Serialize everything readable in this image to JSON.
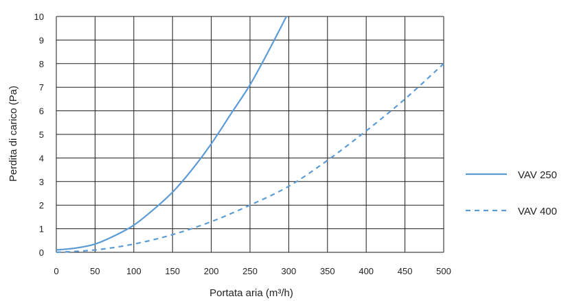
{
  "chart_data": {
    "type": "line",
    "xlabel": "Portata aria (m³/h)",
    "ylabel": "Perdita di carico (Pa)",
    "xlim": [
      0,
      500
    ],
    "ylim": [
      0,
      10
    ],
    "xticks": [
      "0",
      "50",
      "100",
      "150",
      "200",
      "250",
      "300",
      "350",
      "400",
      "450",
      "500"
    ],
    "yticks": [
      "0",
      "1",
      "2",
      "3",
      "4",
      "5",
      "6",
      "7",
      "8",
      "9",
      "10"
    ],
    "grid": true,
    "legend_position": "right",
    "series": [
      {
        "name": "VAV 250",
        "style": "solid",
        "color": "#5b9bd5",
        "x": [
          0,
          25,
          50,
          75,
          100,
          125,
          150,
          175,
          200,
          225,
          250,
          275,
          297
        ],
        "y": [
          0.1,
          0.18,
          0.35,
          0.7,
          1.15,
          1.8,
          2.55,
          3.5,
          4.6,
          5.85,
          7.1,
          8.6,
          10
        ]
      },
      {
        "name": "VAV 400",
        "style": "dashed",
        "color": "#5b9bd5",
        "x": [
          0,
          50,
          100,
          150,
          200,
          250,
          300,
          350,
          400,
          450,
          500
        ],
        "y": [
          0,
          0.1,
          0.35,
          0.75,
          1.3,
          2.0,
          2.8,
          3.9,
          5.15,
          6.5,
          8.0
        ]
      }
    ]
  }
}
